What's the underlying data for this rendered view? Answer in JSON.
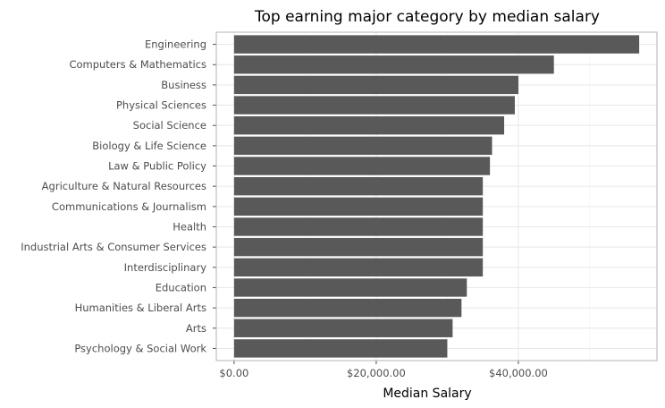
{
  "colors": {
    "bar": "#595959",
    "panel_border": "#b3b3b3",
    "grid_major": "#e5e5e5",
    "grid_minor": "#f3f3f3",
    "tick": "#4d4d4d"
  },
  "chart_data": {
    "type": "bar",
    "orientation": "horizontal",
    "title": "Top earning major category by median salary",
    "xlabel": "Median Salary",
    "ylabel": "",
    "categories": [
      "Engineering",
      "Computers & Mathematics",
      "Business",
      "Physical Sciences",
      "Social Science",
      "Biology & Life Science",
      "Law & Public Policy",
      "Agriculture & Natural Resources",
      "Communications & Journalism",
      "Health",
      "Industrial Arts & Consumer Services",
      "Interdisciplinary",
      "Education",
      "Humanities & Liberal Arts",
      "Arts",
      "Psychology & Social Work"
    ],
    "values": [
      57000,
      45000,
      40000,
      39500,
      38000,
      36300,
      36000,
      35000,
      35000,
      35000,
      35000,
      35000,
      32750,
      32000,
      30750,
      30000
    ],
    "xlim": [
      -2500,
      59500
    ],
    "xticks": [
      0,
      20000,
      40000
    ],
    "xtick_labels": [
      "$0.00",
      "$20,000.00",
      "$40,000.00"
    ],
    "grid": true,
    "legend": "none"
  }
}
